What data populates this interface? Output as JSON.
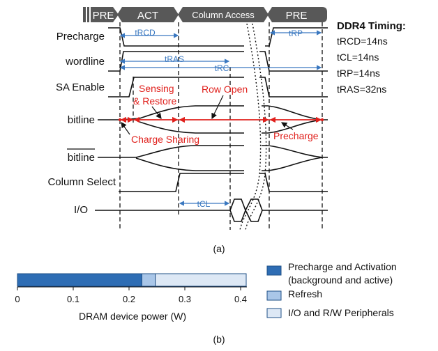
{
  "timing_diagram": {
    "phases": [
      "PRE",
      "ACT",
      "Column Access",
      "PRE"
    ],
    "signals": [
      "Precharge",
      "wordline",
      "SA Enable",
      "bitline",
      "bitline",
      "Column Select",
      "I/O"
    ],
    "intervals": {
      "trcd": "tRCD",
      "tras": "tRAS",
      "trc": "tRC",
      "trp": "tRP",
      "tcl": "tCL"
    },
    "annotations": {
      "sensing": "Sensing",
      "restore": "& Restore",
      "row_open": "Row Open",
      "charge_sharing": "Charge Sharing",
      "precharge": "Precharge"
    },
    "ddr4": {
      "title": "DDR4 Timing:",
      "lines": [
        "tRCD=14ns",
        "tCL=14ns",
        "tRP=14ns",
        "tRAS=32ns"
      ]
    },
    "caption": "(a)"
  },
  "chart_data": {
    "type": "bar",
    "orientation": "horizontal-stacked",
    "xlabel": "DRAM device power (W)",
    "xlim": [
      0,
      0.4
    ],
    "xticks": [
      0,
      0.1,
      0.2,
      0.3,
      0.4
    ],
    "xtick_labels": [
      "0",
      "0.1",
      "0.2",
      "0.3",
      "0.4"
    ],
    "series": [
      {
        "name": "Precharge and Activation (background and active)",
        "legend_lines": [
          "Precharge and Activation",
          "(background and active)"
        ],
        "value": 0.223,
        "color": "#2e6db4"
      },
      {
        "name": "Refresh",
        "legend_lines": [
          "Refresh"
        ],
        "value": 0.024,
        "color": "#a9c6e8"
      },
      {
        "name": "I/O and R/W Peripherals",
        "legend_lines": [
          "I/O and R/W Peripherals"
        ],
        "value": 0.163,
        "color": "#dde8f5"
      }
    ],
    "caption": "(b)"
  }
}
